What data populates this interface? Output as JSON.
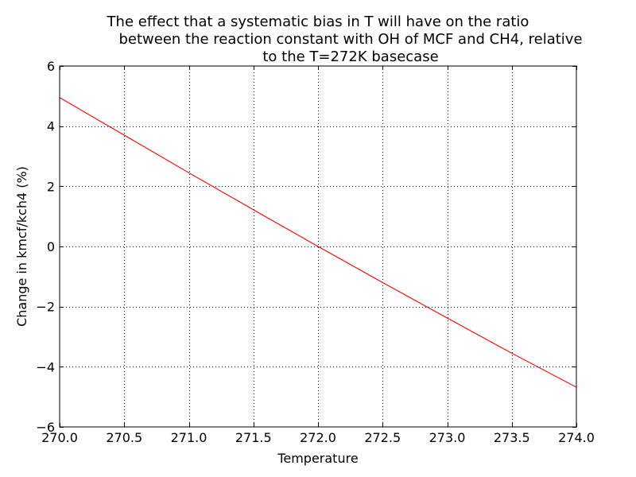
{
  "chart_data": {
    "type": "line",
    "title_lines": [
      "The effect that a systematic bias in T will have on the ratio",
      "between the reaction constant with OH of MCF and CH4, relative",
      "to the T=272K basecase"
    ],
    "xlabel": "Temperature",
    "ylabel": "Change in kmcf/kch4 (%)",
    "xlim": [
      270.0,
      274.0
    ],
    "ylim": [
      -6,
      6
    ],
    "xticks": [
      270.0,
      270.5,
      271.0,
      271.5,
      272.0,
      272.5,
      273.0,
      273.5,
      274.0
    ],
    "xtick_labels": [
      "270.0",
      "270.5",
      "271.0",
      "271.5",
      "272.0",
      "272.5",
      "273.0",
      "273.5",
      "274.0"
    ],
    "yticks": [
      -6,
      -4,
      -2,
      0,
      2,
      4,
      6
    ],
    "ytick_labels": [
      "−6",
      "−4",
      "−2",
      "0",
      "2",
      "4",
      "6"
    ],
    "grid": true,
    "series": [
      {
        "color": "#ff0000",
        "x": [
          270.0,
          270.5,
          271.0,
          271.5,
          272.0,
          272.5,
          273.0,
          273.5,
          274.0
        ],
        "y": [
          4.95,
          3.7,
          2.45,
          1.22,
          0.0,
          -1.2,
          -2.38,
          -3.55,
          -4.68
        ]
      }
    ]
  }
}
